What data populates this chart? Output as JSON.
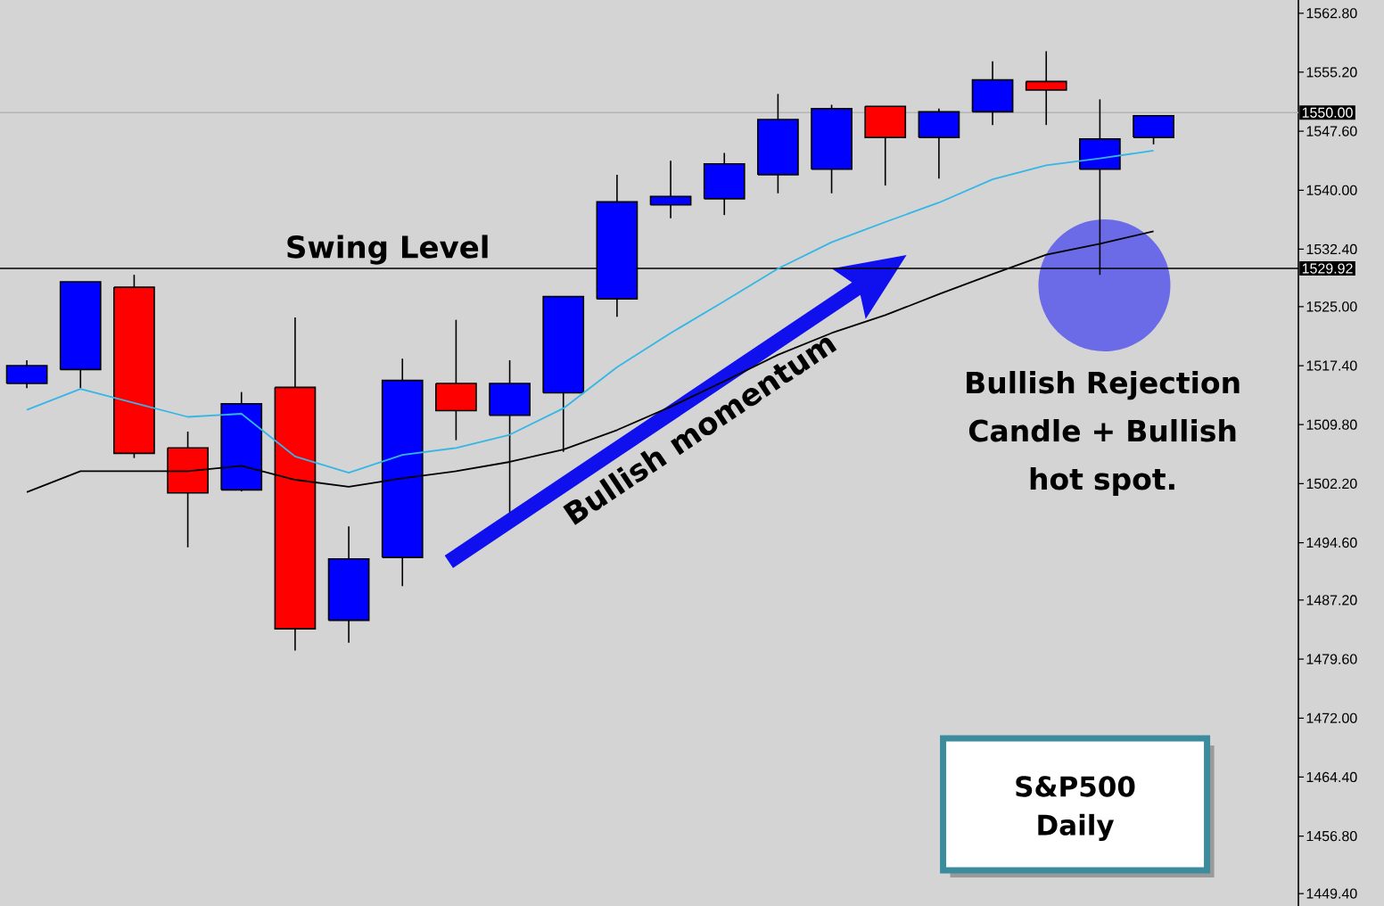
{
  "chart_data": {
    "type": "candlestick",
    "title": "S&P500",
    "subtitle": "Daily",
    "categories": [
      null,
      null,
      null,
      null,
      null,
      null,
      null,
      null,
      null,
      null,
      null,
      null,
      null,
      null,
      null,
      null,
      null,
      null,
      null,
      null,
      null,
      null
    ],
    "ohlc": [
      [
        1515.1,
        1518.1,
        1514.5,
        1517.4
      ],
      [
        1516.9,
        1528.2,
        1514.5,
        1528.2
      ],
      [
        1527.5,
        1529.1,
        1505.5,
        1506.1
      ],
      [
        1506.8,
        1508.9,
        1494.0,
        1501.0
      ],
      [
        1501.4,
        1514.0,
        1501.2,
        1512.5
      ],
      [
        1514.6,
        1523.6,
        1480.7,
        1483.5
      ],
      [
        1484.6,
        1496.7,
        1481.7,
        1492.5
      ],
      [
        1492.7,
        1518.3,
        1489.0,
        1515.5
      ],
      [
        1515.1,
        1523.3,
        1507.8,
        1511.6
      ],
      [
        1511.0,
        1518.1,
        1498.5,
        1515.1
      ],
      [
        1513.9,
        1526.3,
        1506.3,
        1526.3
      ],
      [
        1526.0,
        1542.0,
        1523.7,
        1538.5
      ],
      [
        1538.1,
        1543.8,
        1536.4,
        1539.2
      ],
      [
        1538.9,
        1544.8,
        1536.8,
        1543.4
      ],
      [
        1542.0,
        1552.4,
        1539.6,
        1549.1
      ],
      [
        1542.7,
        1551.0,
        1539.6,
        1550.5
      ],
      [
        1550.8,
        1550.8,
        1540.6,
        1546.8
      ],
      [
        1546.8,
        1550.5,
        1541.5,
        1550.1
      ],
      [
        1550.1,
        1556.6,
        1548.4,
        1554.2
      ],
      [
        1554.0,
        1557.9,
        1548.4,
        1552.9
      ],
      [
        1542.7,
        1551.7,
        1529.1,
        1546.6
      ],
      [
        1546.8,
        1549.6,
        1545.9,
        1549.6
      ]
    ],
    "colors": [
      "#0000ff",
      "#0000ff",
      "#ff0000",
      "#ff0000",
      "#0000ff",
      "#ff0000",
      "#0000ff",
      "#0000ff",
      "#ff0000",
      "#0000ff",
      "#0000ff",
      "#0000ff",
      "#0000ff",
      "#0000ff",
      "#0000ff",
      "#0000ff",
      "#ff0000",
      "#0000ff",
      "#0000ff",
      "#ff0000",
      "#0000ff",
      "#0000ff"
    ],
    "series": [
      {
        "type": "line",
        "color": "#35b6e6",
        "values": [
          1511.7,
          1514.4,
          1512.6,
          1510.8,
          1511.2,
          1505.7,
          1503.6,
          1505.9,
          1506.8,
          1508.5,
          1511.9,
          1517.2,
          1521.6,
          1525.7,
          1529.9,
          1533.3,
          1535.9,
          1538.4,
          1541.4,
          1543.2,
          1544.1,
          1545.1
        ]
      },
      {
        "type": "line",
        "color": "#000000",
        "values": [
          1501.1,
          1503.8,
          1503.8,
          1503.8,
          1504.5,
          1502.7,
          1501.8,
          1502.9,
          1503.8,
          1505.0,
          1506.6,
          1509.1,
          1512.1,
          1515.4,
          1518.8,
          1521.6,
          1523.9,
          1526.6,
          1529.2,
          1531.7,
          1533.1,
          1534.7
        ]
      }
    ],
    "ylim": [
      1447.8,
      1564.5
    ],
    "yticks": [
      {
        "value": 1562.8,
        "label": "1562.80"
      },
      {
        "value": 1555.2,
        "label": "1555.20"
      },
      {
        "value": 1547.6,
        "label": "1547.60"
      },
      {
        "value": 1540,
        "label": "1540.00"
      },
      {
        "value": 1532.4,
        "label": "1532.40"
      },
      {
        "value": 1525,
        "label": "1525.00"
      },
      {
        "value": 1517.4,
        "label": "1517.40"
      },
      {
        "value": 1509.8,
        "label": "1509.80"
      },
      {
        "value": 1502.2,
        "label": "1502.20"
      },
      {
        "value": 1494.6,
        "label": "1494.60"
      },
      {
        "value": 1487.2,
        "label": "1487.20"
      },
      {
        "value": 1479.6,
        "label": "1479.60"
      },
      {
        "value": 1472,
        "label": "1472.00"
      },
      {
        "value": 1464.4,
        "label": "1464.40"
      },
      {
        "value": 1456.8,
        "label": "1456.80"
      },
      {
        "value": 1449.4,
        "label": "1449.40"
      }
    ],
    "ref_lines": [
      {
        "axis": "y",
        "value": 1550,
        "label": "1550.00",
        "color": "#b4b4b4"
      },
      {
        "axis": "y",
        "value": 1529.92,
        "label": "1529.92",
        "color": "#000000"
      }
    ],
    "annotations": [
      "Bullish momentum",
      {
        "text": "Swing Level",
        "y": 1529.92
      },
      "Bullish Rejection Candle + Bullish hot spot."
    ]
  }
}
